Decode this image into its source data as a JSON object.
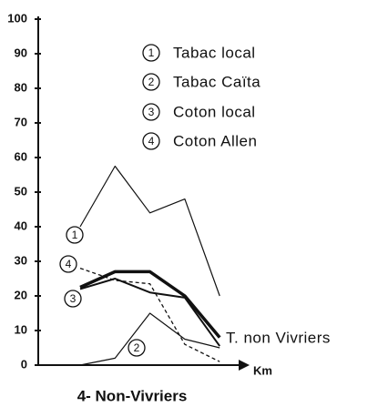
{
  "chart_data": {
    "type": "line",
    "title": "4- Non-Vivriers",
    "x_label": "Km",
    "categories": [
      null,
      null,
      null,
      null,
      null
    ],
    "ylim": [
      0,
      100
    ],
    "yticks": [
      0,
      10,
      20,
      30,
      40,
      50,
      60,
      70,
      80,
      90,
      100
    ],
    "series": [
      {
        "name": "Tabac local",
        "marker": "1",
        "color": "#111111",
        "style": "solid",
        "linewidth": 1.2,
        "values": [
          40,
          57.5,
          44,
          48,
          20
        ]
      },
      {
        "name": "Tabac Caïta",
        "marker": "2",
        "color": "#111111",
        "style": "solid",
        "linewidth": 1.2,
        "values": [
          0,
          2,
          15,
          7.5,
          5
        ]
      },
      {
        "name": "Coton local",
        "marker": "3",
        "color": "#111111",
        "style": "solid",
        "linewidth": 2,
        "values": [
          22,
          25,
          21,
          19.5,
          5.5
        ]
      },
      {
        "name": "Coton Allen",
        "marker": "4",
        "color": "#111111",
        "style": "dashed",
        "linewidth": 1.3,
        "values": [
          28,
          24.5,
          23.5,
          6,
          1
        ]
      },
      {
        "name": "T. non Vivriers",
        "color": "#111111",
        "style": "solid",
        "linewidth": 3.5,
        "values": [
          22.5,
          27,
          27,
          20,
          8
        ]
      }
    ]
  }
}
